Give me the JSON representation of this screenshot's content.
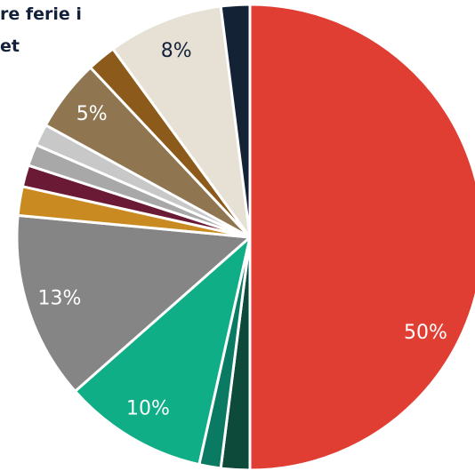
{
  "chart_data": {
    "type": "pie",
    "title_lines": [
      "re ferie i",
      "et"
    ],
    "start_angle": 0,
    "direction": "clockwise",
    "values": [
      50,
      2,
      1.5,
      10,
      13,
      2,
      1.5,
      1.5,
      1.5,
      5,
      2,
      8,
      2
    ],
    "value_labels": [
      "50%",
      null,
      null,
      "10%",
      "13%",
      null,
      null,
      null,
      null,
      "5%",
      null,
      "8%",
      null
    ],
    "colors": [
      "#e03e33",
      "#0e4a3a",
      "#0a7a62",
      "#0fae86",
      "#858585",
      "#c98a22",
      "#6b1a35",
      "#a8a8a8",
      "#c8c8c8",
      "#8f7650",
      "#8c5a1a",
      "#e7e1d5",
      "#132235"
    ]
  }
}
